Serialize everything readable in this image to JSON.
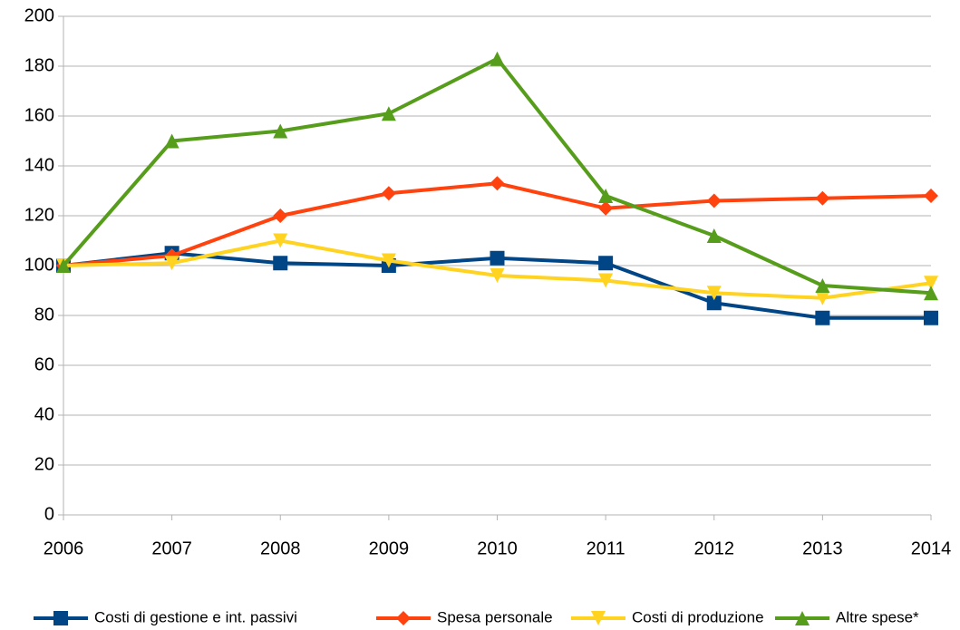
{
  "chart_data": {
    "type": "line",
    "x": [
      2006,
      2007,
      2008,
      2009,
      2010,
      2011,
      2012,
      2013,
      2014
    ],
    "xlim": [
      2006,
      2014
    ],
    "xticks": [
      2006,
      2007,
      2008,
      2009,
      2010,
      2011,
      2012,
      2013,
      2014
    ],
    "ylim": [
      0,
      200
    ],
    "yticks": [
      0,
      20,
      40,
      60,
      80,
      100,
      120,
      140,
      160,
      180,
      200
    ],
    "grid": true,
    "legend": "bottom",
    "series": [
      {
        "name": "Costi di gestione e int. passivi",
        "color": "#004586",
        "marker": "square",
        "values": [
          100,
          105,
          101,
          100,
          103,
          101,
          85,
          79,
          79
        ]
      },
      {
        "name": "Spesa personale",
        "color": "#ff420e",
        "marker": "diamond",
        "values": [
          100,
          104,
          120,
          129,
          133,
          123,
          126,
          127,
          128
        ]
      },
      {
        "name": "Costi di produzione",
        "color": "#ffd320",
        "marker": "triangle-down",
        "values": [
          100,
          101,
          110,
          102,
          96,
          94,
          89,
          87,
          93
        ]
      },
      {
        "name": "Altre spese*",
        "color": "#579d1c",
        "marker": "triangle-up",
        "values": [
          100,
          150,
          154,
          161,
          183,
          128,
          112,
          92,
          89
        ]
      }
    ]
  }
}
